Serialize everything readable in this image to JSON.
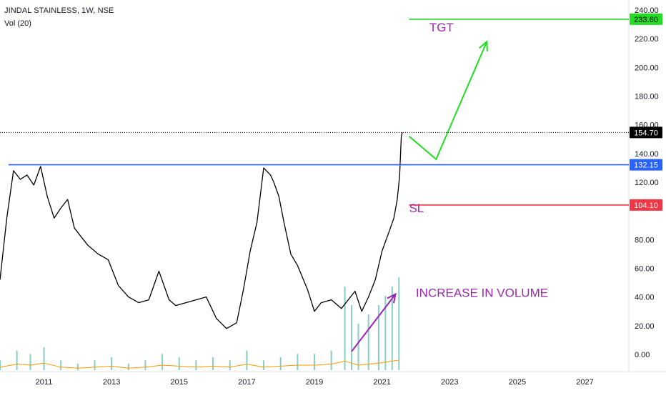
{
  "header": {
    "title": "JINDAL STAINLESS, 1W, NSE",
    "volume_label": "Vol (20)"
  },
  "colors": {
    "price_line": "#000000",
    "resistance": "#2962ff",
    "target": "#22dd22",
    "stoploss": "#f23645",
    "annotation_text": "#9c27b0",
    "volume_up": "#26a69a",
    "volume_down": "#ef5350",
    "volume_ma": "#ff9800"
  },
  "chart_data": {
    "type": "line",
    "title": "JINDAL STAINLESS, 1W, NSE",
    "xlabel": "",
    "ylabel": "",
    "x_ticks": [
      "2011",
      "2013",
      "2015",
      "2017",
      "2019",
      "2021",
      "2023",
      "2025",
      "2027"
    ],
    "y_ticks": [
      "0.00",
      "20.00",
      "40.00",
      "60.00",
      "80.00",
      "120.00",
      "140.00",
      "160.00",
      "180.00",
      "200.00",
      "220.00",
      "240.00"
    ],
    "ylim": [
      -12,
      247
    ],
    "xlim": [
      2009.7,
      2028.3
    ],
    "grid": false,
    "series": [
      {
        "x": [
          2009.7,
          2009.9,
          2010.1,
          2010.3,
          2010.5,
          2010.7,
          2010.9,
          2011.1,
          2011.3,
          2011.5,
          2011.7,
          2011.9,
          2012.1,
          2012.3,
          2012.6,
          2012.9,
          2013.2,
          2013.5,
          2013.8,
          2014.1,
          2014.4,
          2014.7,
          2014.9,
          2015.2,
          2015.5,
          2015.8,
          2016.1,
          2016.4,
          2016.7,
          2016.9,
          2017.1,
          2017.3,
          2017.5,
          2017.7,
          2017.8,
          2017.95,
          2018.1,
          2018.3,
          2018.5,
          2018.8,
          2019.0,
          2019.2,
          2019.5,
          2019.8,
          2020.0,
          2020.2,
          2020.4,
          2020.6,
          2020.8,
          2021.0,
          2021.2,
          2021.35,
          2021.45,
          2021.52,
          2021.57,
          2021.6
        ],
        "values": [
          52,
          95,
          128,
          122,
          125,
          118,
          131,
          110,
          95,
          102,
          108,
          88,
          82,
          76,
          70,
          66,
          48,
          40,
          36,
          38,
          58,
          38,
          34,
          36,
          38,
          40,
          25,
          18,
          22,
          45,
          72,
          92,
          130,
          125,
          120,
          110,
          92,
          70,
          62,
          45,
          30,
          36,
          38,
          32,
          38,
          44,
          30,
          40,
          52,
          72,
          85,
          95,
          108,
          124,
          152,
          154.7
        ]
      }
    ],
    "volume_series": {
      "name": "Vol (20)",
      "x": [
        2009.7,
        2010.2,
        2010.6,
        2011.0,
        2011.5,
        2012.0,
        2012.5,
        2013.0,
        2013.5,
        2014.0,
        2014.5,
        2015.0,
        2015.5,
        2016.0,
        2016.5,
        2017.0,
        2017.5,
        2018.0,
        2018.5,
        2019.0,
        2019.5,
        2019.9,
        2020.1,
        2020.3,
        2020.6,
        2020.9,
        2021.1,
        2021.3,
        2021.5
      ],
      "values": [
        0.3,
        0.6,
        0.5,
        0.7,
        0.3,
        0.2,
        0.3,
        0.4,
        0.2,
        0.3,
        0.5,
        0.4,
        0.3,
        0.4,
        0.3,
        0.6,
        0.3,
        0.4,
        0.5,
        0.5,
        0.6,
        0.9,
        0.7,
        0.5,
        0.6,
        0.7,
        0.8,
        0.9,
        1.0
      ]
    },
    "hlines": [
      {
        "name": "TGT",
        "value": 233.6,
        "label": "233.60"
      },
      {
        "name": "last",
        "value": 154.7,
        "label": "154.70"
      },
      {
        "name": "resistance",
        "value": 132.15,
        "label": "132.15"
      },
      {
        "name": "SL",
        "value": 104.1,
        "label": "104.10"
      }
    ],
    "annotations": [
      {
        "text": "TGT",
        "x": 2022.4,
        "y": 225
      },
      {
        "text": "SL",
        "x": 2021.8,
        "y": 99
      },
      {
        "text": "INCREASE IN VOLUME",
        "x": 2022.0,
        "y": 40
      }
    ],
    "projection_path": {
      "x": [
        2021.8,
        2022.6,
        2024.1
      ],
      "values": [
        152,
        136,
        218
      ]
    },
    "volume_arrow": {
      "x": [
        2020.1,
        2021.4
      ],
      "values": [
        2,
        42
      ]
    }
  }
}
